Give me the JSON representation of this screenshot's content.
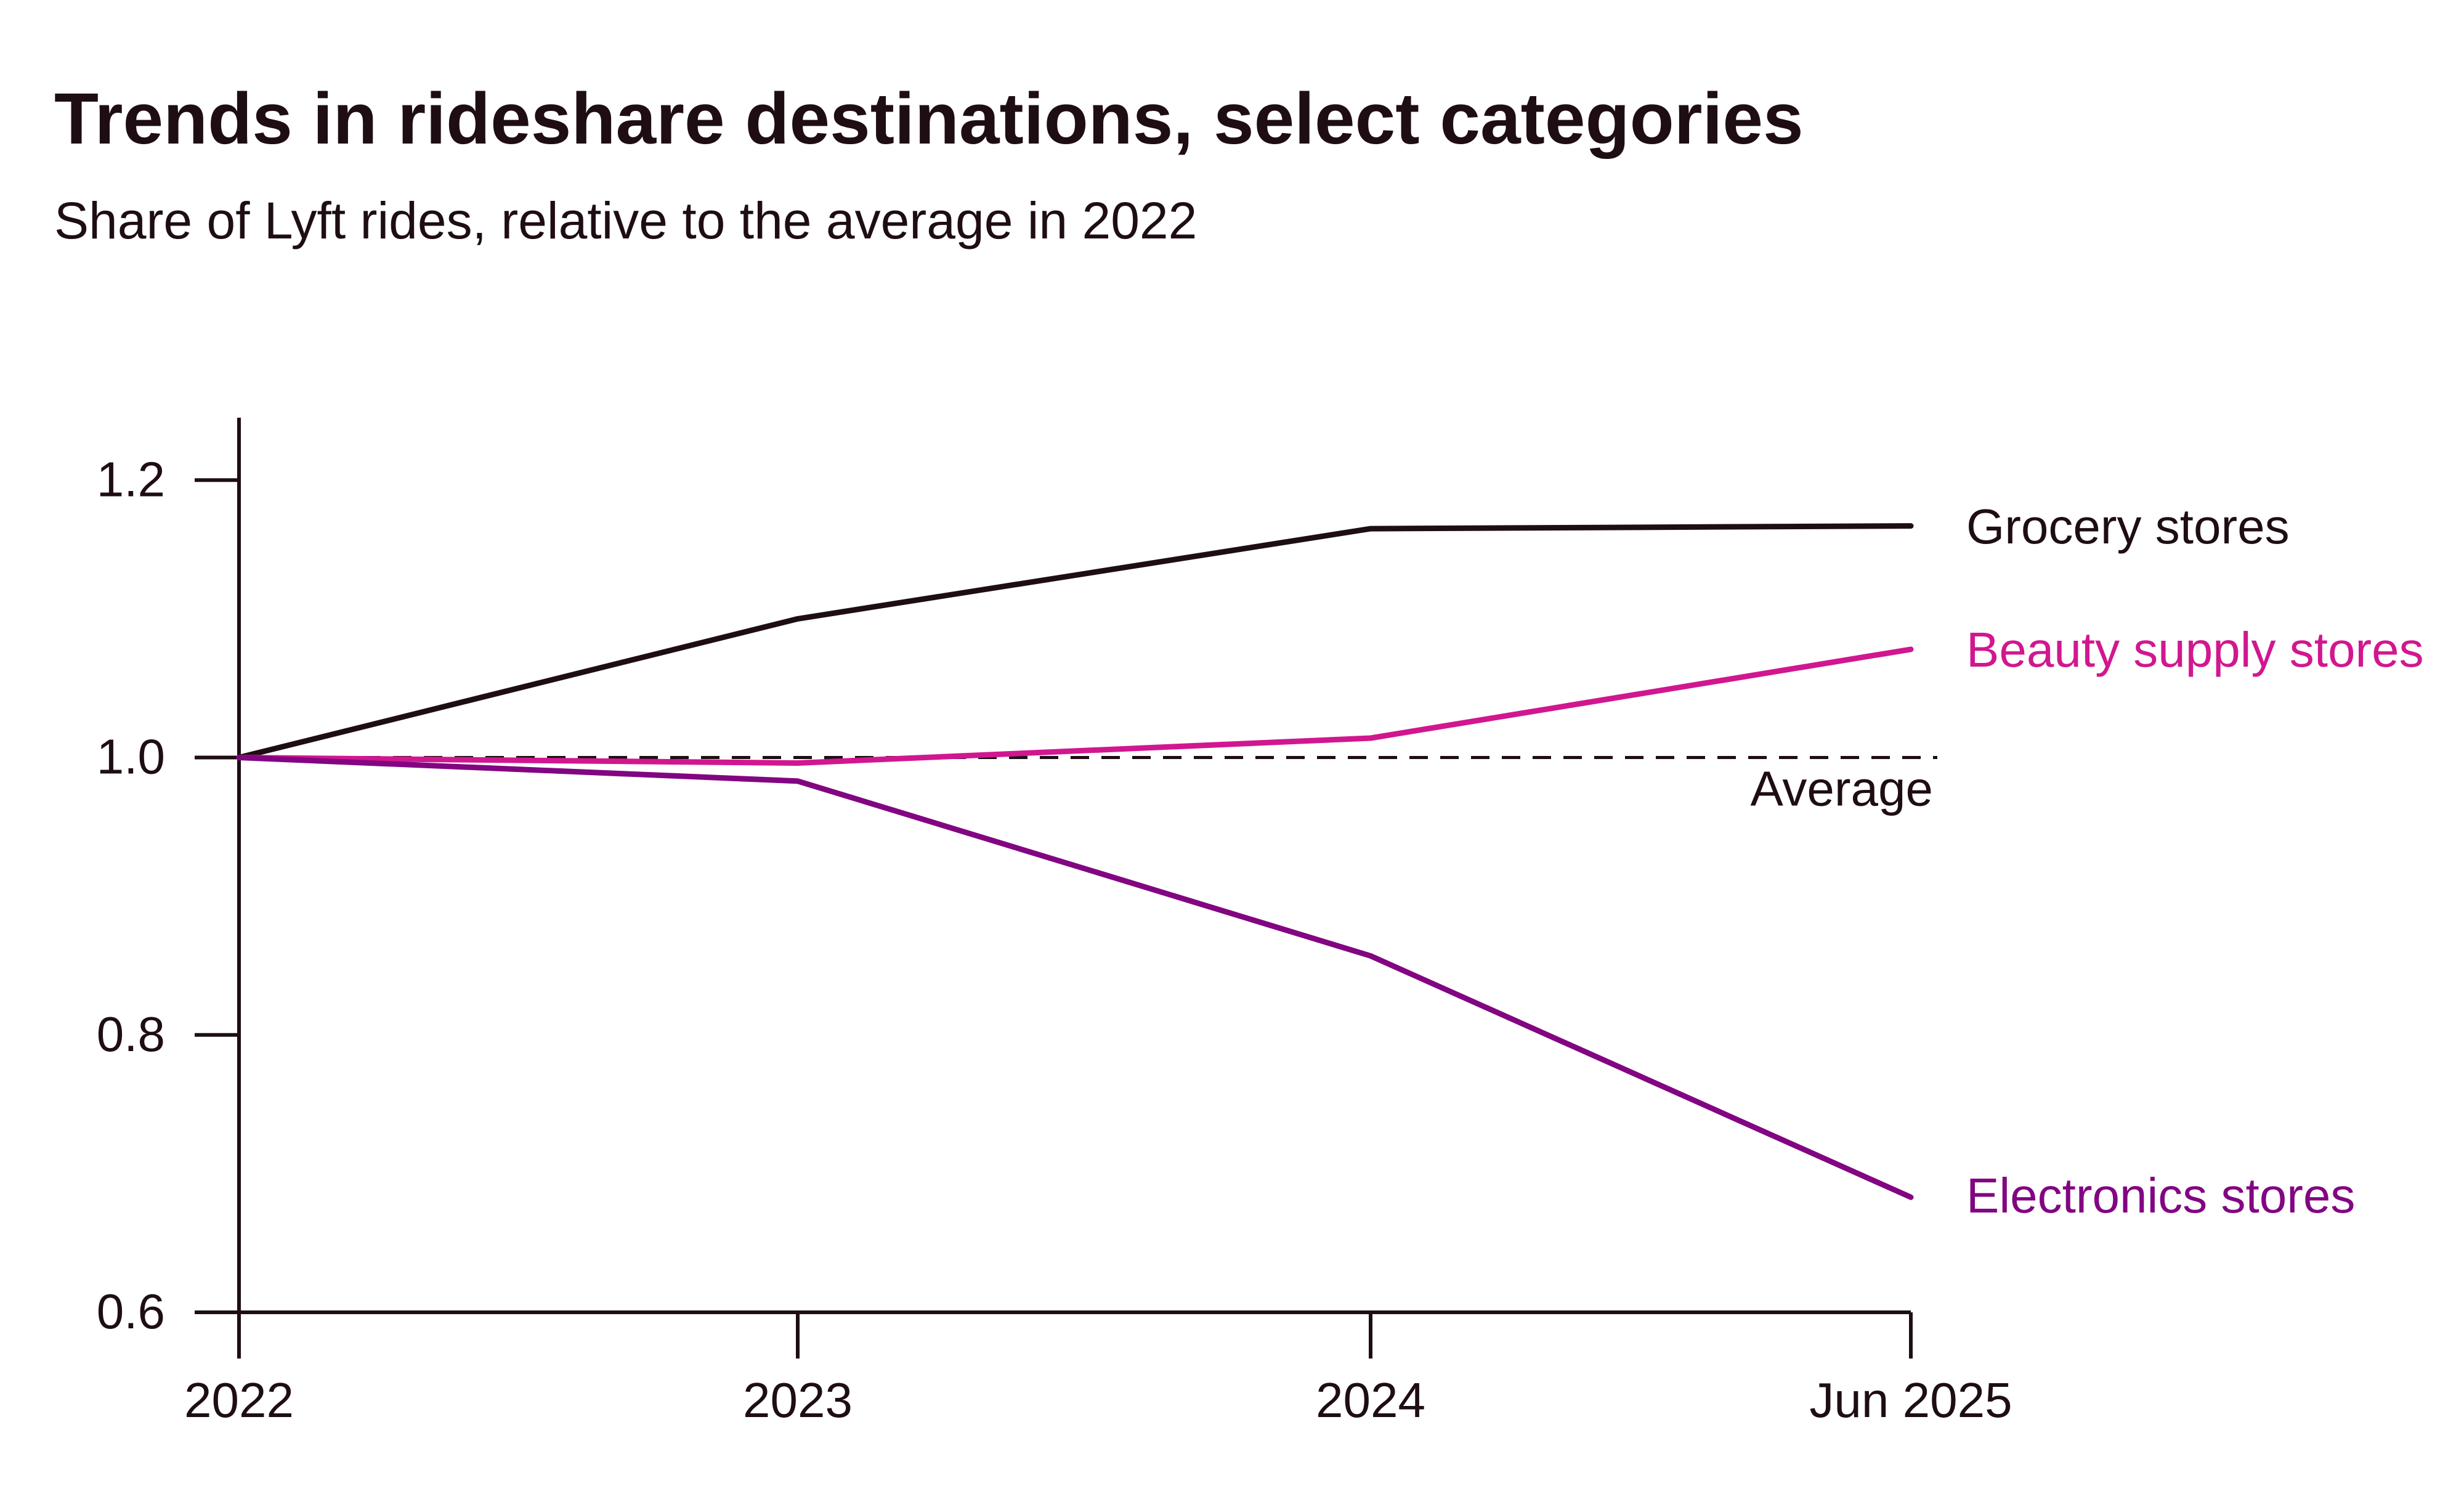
{
  "chart_data": {
    "type": "line",
    "title": "Trends in rideshare destinations, select categories",
    "subtitle": "Share of Lyft rides, relative to the average in 2022",
    "xlabel": "",
    "ylabel": "",
    "x": [
      "2022",
      "2023",
      "2024",
      "Jun 2025"
    ],
    "ylim": [
      0.6,
      1.245
    ],
    "yticks": [
      0.6,
      0.8,
      1.0,
      1.2
    ],
    "ytick_labels": [
      "0.6",
      "0.8",
      "1.0",
      "1.2"
    ],
    "grid": false,
    "legend": "direct labels at line ends (right)",
    "series": [
      {
        "name": "Grocery stores",
        "values": [
          1.0,
          1.1,
          1.165,
          1.167
        ],
        "color": "#1e0e14"
      },
      {
        "name": "Beauty supply stores",
        "values": [
          1.0,
          0.996,
          1.014,
          1.078
        ],
        "color": "#d1178f"
      },
      {
        "name": "Electronics stores",
        "values": [
          1.0,
          0.983,
          0.857,
          0.683
        ],
        "color": "#820582"
      }
    ],
    "reference_line": {
      "label": "Average",
      "value": 1.0,
      "style": "dashed",
      "color": "#1e0e14"
    }
  }
}
